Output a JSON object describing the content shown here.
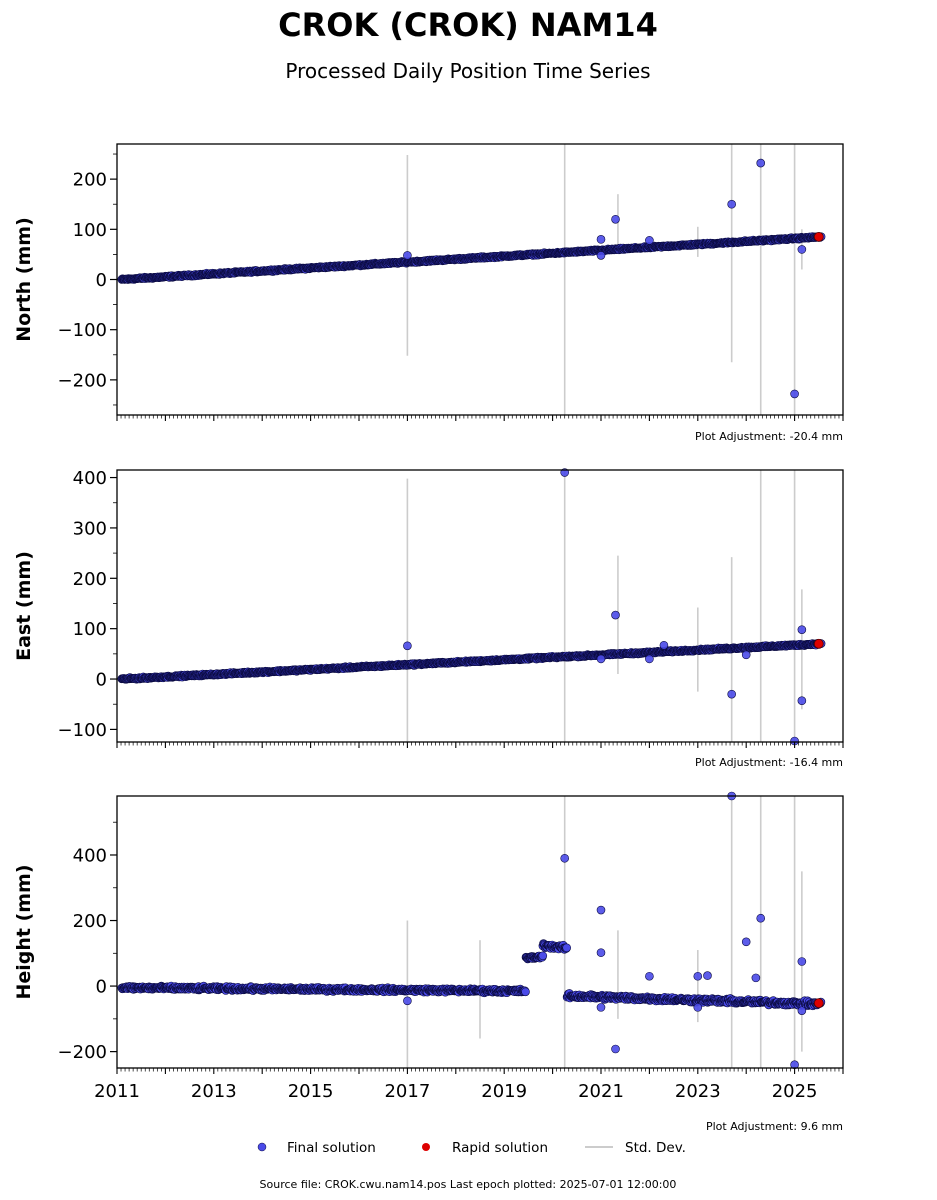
{
  "chart_data": {
    "type": "scatter",
    "title": "CROK (CROK) NAM14",
    "subtitle": "Processed Daily Position Time Series",
    "x_ticks": [
      "2011",
      "2013",
      "2015",
      "2017",
      "2019",
      "2021",
      "2023",
      "2025"
    ],
    "xlim": [
      2011.0,
      2026.0
    ],
    "panels": [
      {
        "id": "north",
        "ylabel": "North (mm)",
        "ylim": [
          -270,
          270
        ],
        "yticks": [
          200,
          100,
          0,
          -100,
          -200
        ],
        "ytick_labels": [
          "200",
          "100",
          "0",
          "−100",
          "−200"
        ],
        "adjustment": "Plot Adjustment: -20.4 mm",
        "trend": [
          [
            2011.1,
            0
          ],
          [
            2025.55,
            85
          ]
        ],
        "outliers": [
          [
            2017.0,
            48
          ],
          [
            2021.0,
            80
          ],
          [
            2021.3,
            120
          ],
          [
            2022.0,
            78
          ],
          [
            2023.7,
            150
          ],
          [
            2024.3,
            232
          ],
          [
            2025.0,
            -228
          ],
          [
            2025.15,
            60
          ],
          [
            2021.0,
            48
          ]
        ],
        "errorbars": [
          [
            2017.0,
            -152,
            248
          ],
          [
            2020.25,
            -270,
            270
          ],
          [
            2021.35,
            60,
            170
          ],
          [
            2023.0,
            45,
            105
          ],
          [
            2023.7,
            -165,
            270
          ],
          [
            2024.3,
            -270,
            270
          ],
          [
            2025.0,
            -270,
            270
          ],
          [
            2025.15,
            20,
            100
          ]
        ],
        "rapid": [
          2025.5,
          85
        ]
      },
      {
        "id": "east",
        "ylabel": "East (mm)",
        "ylim": [
          -125,
          415
        ],
        "yticks": [
          400,
          300,
          200,
          100,
          0,
          -100
        ],
        "ytick_labels": [
          "400",
          "300",
          "200",
          "100",
          "0",
          "−100"
        ],
        "adjustment": "Plot Adjustment: -16.4 mm",
        "trend": [
          [
            2011.1,
            0
          ],
          [
            2025.55,
            70
          ]
        ],
        "outliers": [
          [
            2017.0,
            66
          ],
          [
            2020.25,
            410
          ],
          [
            2021.3,
            127
          ],
          [
            2022.3,
            67
          ],
          [
            2023.7,
            -30
          ],
          [
            2024.0,
            48
          ],
          [
            2025.0,
            -123
          ],
          [
            2025.15,
            98
          ],
          [
            2025.15,
            -43
          ],
          [
            2021.0,
            40
          ],
          [
            2022.0,
            40
          ]
        ],
        "errorbars": [
          [
            2017.0,
            -125,
            398
          ],
          [
            2020.25,
            -125,
            415
          ],
          [
            2021.35,
            10,
            245
          ],
          [
            2023.0,
            -25,
            142
          ],
          [
            2023.7,
            -125,
            242
          ],
          [
            2024.3,
            -125,
            415
          ],
          [
            2025.0,
            -125,
            415
          ],
          [
            2025.15,
            -60,
            178
          ]
        ],
        "rapid": [
          2025.5,
          70
        ]
      },
      {
        "id": "height",
        "ylabel": "Height (mm)",
        "ylim": [
          -250,
          580
        ],
        "yticks": [
          400,
          200,
          0,
          -200
        ],
        "ytick_labels": [
          "400",
          "200",
          "0",
          "−200"
        ],
        "adjustment": "Plot Adjustment: 9.6 mm",
        "segments": [
          {
            "x0": 2011.1,
            "x1": 2019.45,
            "y0": -5,
            "y1": -15,
            "spread": 8
          },
          {
            "x0": 2019.45,
            "x1": 2019.8,
            "y0": 85,
            "y1": 90,
            "spread": 6
          },
          {
            "x0": 2019.8,
            "x1": 2020.3,
            "y0": 125,
            "y1": 115,
            "spread": 10
          },
          {
            "x0": 2020.3,
            "x1": 2025.55,
            "y0": -30,
            "y1": -55,
            "spread": 10
          }
        ],
        "outliers": [
          [
            2017.0,
            -45
          ],
          [
            2020.25,
            390
          ],
          [
            2021.0,
            232
          ],
          [
            2021.0,
            102
          ],
          [
            2021.0,
            -65
          ],
          [
            2021.3,
            -192
          ],
          [
            2022.0,
            30
          ],
          [
            2023.0,
            30
          ],
          [
            2023.2,
            32
          ],
          [
            2023.0,
            -65
          ],
          [
            2023.7,
            580
          ],
          [
            2024.0,
            135
          ],
          [
            2024.3,
            207
          ],
          [
            2024.2,
            25
          ],
          [
            2025.0,
            -240
          ],
          [
            2025.15,
            75
          ],
          [
            2025.15,
            -75
          ]
        ],
        "errorbars": [
          [
            2017.0,
            -250,
            200
          ],
          [
            2018.5,
            -160,
            140
          ],
          [
            2020.25,
            -250,
            580
          ],
          [
            2021.35,
            -100,
            170
          ],
          [
            2023.0,
            -110,
            110
          ],
          [
            2023.7,
            -250,
            580
          ],
          [
            2024.3,
            -250,
            580
          ],
          [
            2025.0,
            -250,
            580
          ],
          [
            2025.15,
            -200,
            350
          ]
        ],
        "rapid": [
          2025.5,
          -52
        ]
      }
    ],
    "legend": [
      "Final solution",
      "Rapid solution",
      "Std. Dev."
    ],
    "footer": "Source file: CROK.cwu.nam14.pos  Last epoch plotted: 2025-07-01 12:00:00"
  },
  "colors": {
    "final": "#4a4ae8",
    "final_edge": "#0a0a40",
    "rapid": "#dd0000",
    "stddev": "#cccccc"
  }
}
